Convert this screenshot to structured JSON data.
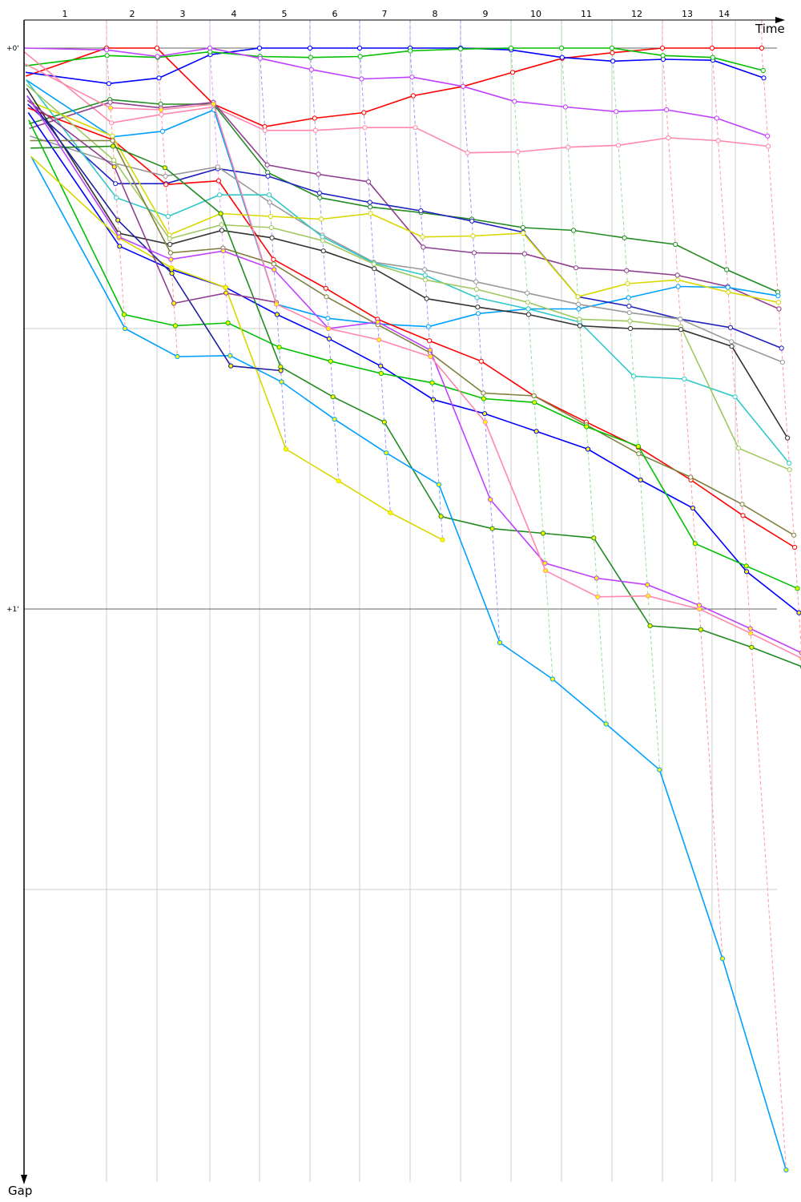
{
  "chart_data": {
    "type": "line",
    "xlabel": "Time",
    "ylabel": "Gap",
    "x_tick_labels": [
      "1",
      "2",
      "3",
      "4",
      "5",
      "6",
      "7",
      "8",
      "9",
      "10",
      "11",
      "12",
      "13",
      "14"
    ],
    "y_tick_labels": [
      "+0'",
      "+1'"
    ],
    "y_unit": "seconds",
    "ylim": [
      0,
      120
    ],
    "laps": [
      0,
      1,
      2,
      3,
      4,
      5,
      6,
      7,
      8,
      9,
      10,
      11,
      12,
      13,
      14
    ],
    "grid": true,
    "lap_line_colors": [
      "#FF9999",
      "#FF9999",
      "#E0A0FF",
      "#9999FF",
      "#9999FF",
      "#9999FF",
      "#9999FF",
      "#9999FF",
      "#99DD99",
      "#99DD99",
      "#99DD99",
      "#FF9999",
      "#FF9999",
      "#FF9999"
    ],
    "series": [
      {
        "color": "#FF0000",
        "marker_fill": "#FFFFFF",
        "values": [
          3.0,
          0,
          0,
          6.0,
          8.4,
          7.5,
          6.9,
          5.1,
          4.1,
          2.6,
          1.1,
          0.5,
          0,
          0,
          0
        ]
      },
      {
        "color": "#0000FF",
        "marker_fill": "#FFFFFF",
        "values": [
          2.6,
          3.8,
          3.2,
          0.7,
          0,
          0,
          0,
          0,
          0,
          0.2,
          1.0,
          1.4,
          1.2,
          1.3,
          3.2
        ]
      },
      {
        "color": "#00C000",
        "marker_fill": "#FFFFFF",
        "values": [
          1.9,
          0.8,
          1.0,
          0.4,
          0.9,
          1.0,
          0.9,
          0.3,
          0.1,
          0,
          0,
          0,
          0.8,
          1.0,
          2.4
        ]
      },
      {
        "color": "#C040FF",
        "marker_fill": "#FFFFFF",
        "values": [
          0,
          0.2,
          0.9,
          0,
          1.1,
          2.3,
          3.3,
          3.1,
          4.1,
          5.7,
          6.3,
          6.8,
          6.6,
          7.5,
          9.4
        ]
      },
      {
        "color": "#FF88AA",
        "marker_fill": "#FFFFFF",
        "values": [
          0.4,
          8.0,
          7.1,
          6.3,
          8.8,
          8.8,
          8.5,
          8.5,
          11.2,
          11.1,
          10.6,
          10.4,
          9.6,
          9.9,
          10.5
        ]
      },
      {
        "color": "#228B22",
        "marker_fill": "#FFFFFF",
        "values": [
          8.1,
          5.5,
          6.0,
          6.0,
          13.3,
          16.0,
          17.0,
          17.6,
          18.3,
          19.2,
          19.5,
          20.3,
          21.0,
          23.7,
          26.1
        ]
      },
      {
        "color": "#904090",
        "marker_fill": "#FFFFFF",
        "values": [
          8.6,
          5.8,
          6.4,
          5.8,
          12.5,
          13.5,
          14.3,
          21.3,
          21.9,
          22.0,
          23.5,
          23.8,
          24.3,
          25.5,
          27.9
        ]
      },
      {
        "color": "#00A0FF",
        "marker_fill": "#FFFFFF",
        "values": [
          3.4,
          9.5,
          8.9,
          6.6,
          27.4,
          28.9,
          29.5,
          29.8,
          28.4,
          27.9,
          27.9,
          26.7,
          25.5,
          25.6,
          26.5
        ]
      },
      {
        "color": "#2020C0",
        "marker_fill": "#FFFFFF",
        "values": [
          6.0,
          14.5,
          14.5,
          12.9,
          13.7,
          15.5,
          16.5,
          17.4,
          18.5,
          19.7,
          26.6,
          27.6,
          29.0,
          29.9,
          32.1
        ]
      },
      {
        "color": "#FF0000",
        "marker_fill": "#FFFFFF",
        "values": [
          6.4,
          9.8,
          14.6,
          14.2,
          22.6,
          25.7,
          29.0,
          31.3,
          33.5,
          37.2,
          40.0,
          42.7,
          46.2,
          50.0,
          53.4
        ]
      },
      {
        "color": "#999999",
        "marker_fill": "#FFFFFF",
        "values": [
          9.4,
          12.3,
          13.7,
          12.7,
          16.5,
          20.0,
          22.9,
          23.7,
          25.0,
          26.2,
          27.4,
          28.3,
          29.0,
          31.4,
          33.6
        ]
      },
      {
        "color": "#30C8C8",
        "marker_fill": "#FFFFFF",
        "values": [
          3.4,
          16.0,
          18.0,
          15.7,
          15.7,
          20.2,
          23.0,
          24.3,
          26.7,
          27.9,
          29.3,
          35.1,
          35.4,
          37.3,
          44.4
        ]
      },
      {
        "color": "#D8D800",
        "marker_fill": "#FFFFFF",
        "values": [
          5.6,
          9.4,
          20.0,
          17.7,
          18.0,
          18.3,
          17.7,
          20.2,
          20.1,
          19.8,
          26.6,
          25.2,
          24.8,
          26.1,
          27.2
        ]
      },
      {
        "color": "#A0C860",
        "marker_fill": "#FFFFFF",
        "values": [
          3.9,
          12.0,
          20.4,
          18.9,
          19.2,
          20.6,
          23.1,
          24.8,
          25.8,
          27.2,
          29.0,
          29.2,
          29.8,
          42.8,
          45.1
        ]
      },
      {
        "color": "#333333",
        "marker_fill": "#FFFFFF",
        "values": [
          4.3,
          19.8,
          21.0,
          19.5,
          20.3,
          21.7,
          23.6,
          26.8,
          27.7,
          28.5,
          29.7,
          30.0,
          30.1,
          31.9,
          41.7
        ]
      },
      {
        "color": "#808040",
        "marker_fill": "#FFFFFF",
        "values": [
          9.9,
          9.9,
          21.9,
          21.4,
          23.1,
          26.6,
          29.6,
          32.6,
          36.9,
          37.2,
          40.3,
          43.4,
          45.9,
          48.8,
          52.1
        ]
      },
      {
        "color": "#0000FF",
        "marker_fill": "#FFFF00",
        "values": [
          6.9,
          21.2,
          23.7,
          25.6,
          28.5,
          31.1,
          34.0,
          37.6,
          39.1,
          41.0,
          42.9,
          46.2,
          49.2,
          56.0,
          60.4
        ]
      },
      {
        "color": "#00C000",
        "marker_fill": "#FFFF00",
        "values": [
          7.7,
          28.5,
          29.7,
          29.4,
          32.0,
          33.5,
          34.8,
          35.8,
          37.5,
          37.9,
          40.5,
          42.6,
          53.0,
          55.4,
          57.8
        ]
      },
      {
        "color": "#228B22",
        "marker_fill": "#FFFF00",
        "values": [
          10.7,
          10.5,
          12.8,
          17.7,
          34.1,
          37.3,
          40.0,
          50.1,
          51.4,
          51.9,
          52.4,
          61.8,
          62.2,
          64.1,
          66.2
        ]
      },
      {
        "color": "#00A0FF",
        "marker_fill": "#FFFF00",
        "values": [
          11.6,
          30.0,
          33.0,
          32.9,
          35.7,
          39.7,
          43.3,
          46.7,
          63.6,
          67.5,
          72.3,
          77.2,
          97.4,
          120.0
        ]
      },
      {
        "color": "#D8D800",
        "marker_fill": "#FFFF00",
        "values": [
          11.6,
          20.3,
          23.5,
          25.6,
          42.9,
          46.3,
          49.7,
          52.6
        ]
      },
      {
        "color": "#2020A0",
        "marker_fill": "#FFFF00",
        "values": [
          5.1,
          18.4,
          24.1,
          34.0,
          34.5
        ]
      },
      {
        "color": "#904090",
        "marker_fill": "#FFFF00",
        "values": [
          5.6,
          12.7,
          27.3,
          26.2,
          27.2
        ]
      },
      {
        "color": "#C040FF",
        "marker_fill": "#FFFF00",
        "values": [
          5.1,
          20.2,
          22.6,
          21.7,
          23.7,
          30.0,
          29.3,
          32.3,
          48.3,
          55.1,
          56.7,
          57.4,
          59.6,
          62.1,
          64.7
        ]
      },
      {
        "color": "#FF88AA",
        "marker_fill": "#FFFF00",
        "values": [
          1.7,
          6.4,
          6.6,
          6.0,
          27.4,
          30.0,
          31.2,
          33.0,
          40.0,
          55.9,
          58.7,
          58.6,
          60.0,
          62.6,
          65.3
        ]
      }
    ]
  }
}
